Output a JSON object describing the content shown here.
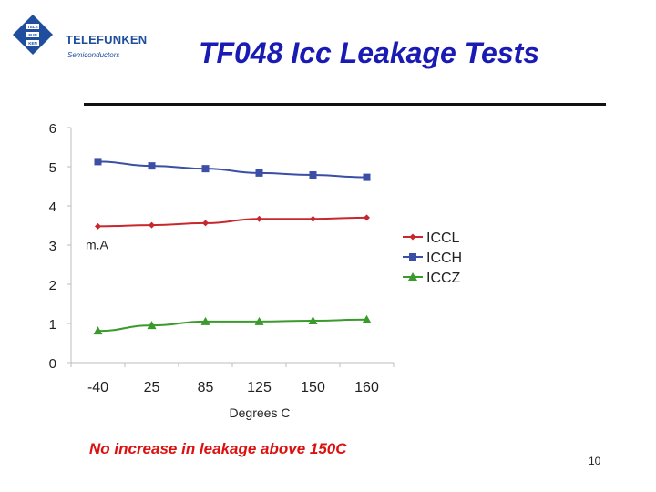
{
  "header": {
    "brand": "TELEFUNKEN",
    "brand_sub": "Semiconductors",
    "logo_cells": [
      "TELE",
      "FUN",
      "KEN"
    ],
    "title": "TF048 Icc Leakage Tests"
  },
  "caption": "No increase in leakage above 150C",
  "page_number": "10",
  "colors": {
    "title": "#1a1ab4",
    "caption": "#dd1010",
    "brand": "#1f4e9e",
    "iccl": "#c8282d",
    "icch": "#3a4fa5",
    "iccz": "#3a9a2c"
  },
  "chart_data": {
    "type": "line",
    "title": "",
    "xlabel": "Degrees C",
    "ylabel": "m.A",
    "categories": [
      "-40",
      "25",
      "85",
      "125",
      "150",
      "160"
    ],
    "ylim": [
      0,
      6
    ],
    "yticks": [
      0,
      1,
      2,
      3,
      4,
      5,
      6
    ],
    "grid": false,
    "legend_position": "right",
    "series": [
      {
        "name": "ICCL",
        "marker": "diamond",
        "color": "#c8282d",
        "values": [
          3.48,
          3.51,
          3.56,
          3.67,
          3.67,
          3.7
        ]
      },
      {
        "name": "ICCH",
        "marker": "square",
        "color": "#3a4fa5",
        "values": [
          5.13,
          5.02,
          4.95,
          4.84,
          4.79,
          4.73
        ]
      },
      {
        "name": "ICCZ",
        "marker": "triangle",
        "color": "#3a9a2c",
        "values": [
          0.81,
          0.95,
          1.05,
          1.05,
          1.07,
          1.1
        ]
      }
    ]
  }
}
